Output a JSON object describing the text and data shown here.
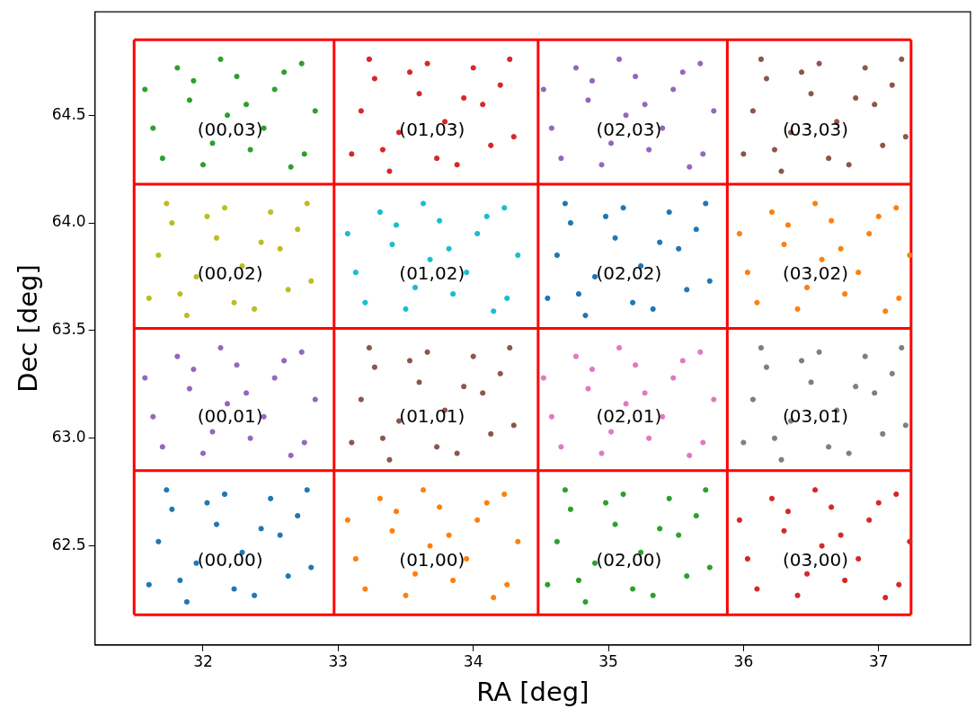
{
  "chart_data": {
    "type": "scatter",
    "xlabel": "RA [deg]",
    "ylabel": "Dec [deg]",
    "xlim": [
      31.2,
      37.68
    ],
    "ylim": [
      62.04,
      64.98
    ],
    "xticks": [
      32,
      33,
      34,
      35,
      36,
      37
    ],
    "yticks": [
      {
        "value": 62.5,
        "label": "62.5"
      },
      {
        "value": 63.0,
        "label": "63.0"
      },
      {
        "value": 63.5,
        "label": "63.5"
      },
      {
        "value": 64.0,
        "label": "64.0"
      },
      {
        "value": 64.5,
        "label": "64.5"
      }
    ],
    "grid": false,
    "legend": false,
    "marker": "circle",
    "annotations": [
      "(00,00)",
      "(01,00)",
      "(02,00)",
      "(03,00)",
      "(00,01)",
      "(01,01)",
      "(02,01)",
      "(03,01)",
      "(00,02)",
      "(01,02)",
      "(02,02)",
      "(03,02)",
      "(00,03)",
      "(01,03)",
      "(02,03)",
      "(03,03)"
    ],
    "series": [
      {
        "color": "#1f77b4",
        "x": [
          31.6,
          31.77,
          31.95,
          32.16,
          32.38,
          32.57,
          32.8,
          31.67,
          31.88,
          32.1,
          32.29,
          32.5,
          32.7,
          31.83,
          32.03,
          32.23,
          32.43,
          32.63,
          32.77,
          31.73
        ],
        "values": [
          62.32,
          62.67,
          62.42,
          62.74,
          62.27,
          62.55,
          62.4,
          62.52,
          62.24,
          62.6,
          62.47,
          62.72,
          62.64,
          62.34,
          62.7,
          62.3,
          62.58,
          62.36,
          62.76,
          62.76
        ]
      },
      {
        "color": "#ff7f0e",
        "x": [
          33.07,
          33.2,
          33.4,
          33.57,
          33.75,
          33.95,
          34.15,
          34.33,
          33.13,
          33.31,
          33.5,
          33.68,
          33.85,
          34.03,
          34.23,
          33.43,
          33.63,
          33.82,
          34.1,
          34.25
        ],
        "values": [
          62.62,
          62.3,
          62.57,
          62.37,
          62.68,
          62.44,
          62.26,
          62.52,
          62.44,
          62.72,
          62.27,
          62.5,
          62.34,
          62.62,
          62.74,
          62.66,
          62.76,
          62.55,
          62.7,
          62.32
        ]
      },
      {
        "color": "#2ca02c",
        "x": [
          34.55,
          34.72,
          34.9,
          35.11,
          35.33,
          35.52,
          35.75,
          34.62,
          34.83,
          35.05,
          35.24,
          35.45,
          35.65,
          34.78,
          34.98,
          35.18,
          35.38,
          35.58,
          35.72,
          34.68
        ],
        "values": [
          62.32,
          62.67,
          62.42,
          62.74,
          62.27,
          62.55,
          62.4,
          62.52,
          62.24,
          62.6,
          62.47,
          62.72,
          62.64,
          62.34,
          62.7,
          62.3,
          62.58,
          62.36,
          62.76,
          62.76
        ]
      },
      {
        "color": "#d62728",
        "x": [
          35.97,
          36.1,
          36.3,
          36.47,
          36.65,
          36.85,
          37.05,
          37.23,
          36.03,
          36.21,
          36.4,
          36.58,
          36.75,
          36.93,
          37.13,
          36.33,
          36.53,
          36.72,
          37.0,
          37.15
        ],
        "values": [
          62.62,
          62.3,
          62.57,
          62.37,
          62.68,
          62.44,
          62.26,
          62.52,
          62.44,
          62.72,
          62.27,
          62.5,
          62.34,
          62.62,
          62.74,
          62.66,
          62.76,
          62.55,
          62.7,
          62.32
        ]
      },
      {
        "color": "#9467bd",
        "x": [
          31.57,
          31.7,
          31.9,
          32.07,
          32.25,
          32.45,
          32.65,
          32.83,
          31.63,
          31.81,
          32.0,
          32.18,
          32.35,
          32.53,
          32.73,
          31.93,
          32.13,
          32.32,
          32.6,
          32.75
        ],
        "values": [
          63.28,
          62.96,
          63.23,
          63.03,
          63.34,
          63.1,
          62.92,
          63.18,
          63.1,
          63.38,
          62.93,
          63.16,
          63.0,
          63.28,
          63.4,
          63.32,
          63.42,
          63.21,
          63.36,
          62.98
        ]
      },
      {
        "color": "#8c564b",
        "x": [
          33.1,
          33.27,
          33.45,
          33.66,
          33.88,
          34.07,
          34.3,
          33.17,
          33.38,
          33.6,
          33.79,
          34.0,
          34.2,
          33.33,
          33.53,
          33.73,
          33.93,
          34.13,
          34.27,
          33.23
        ],
        "values": [
          62.98,
          63.33,
          63.08,
          63.4,
          62.93,
          63.21,
          63.06,
          63.18,
          62.9,
          63.26,
          63.13,
          63.38,
          63.3,
          63.0,
          63.36,
          62.96,
          63.24,
          63.02,
          63.42,
          63.42
        ]
      },
      {
        "color": "#e377c2",
        "x": [
          34.52,
          34.65,
          34.85,
          35.02,
          35.2,
          35.4,
          35.6,
          35.78,
          34.58,
          34.76,
          34.95,
          35.13,
          35.3,
          35.48,
          35.68,
          34.88,
          35.08,
          35.27,
          35.55,
          35.7
        ],
        "values": [
          63.28,
          62.96,
          63.23,
          63.03,
          63.34,
          63.1,
          62.92,
          63.18,
          63.1,
          63.38,
          62.93,
          63.16,
          63.0,
          63.28,
          63.4,
          63.32,
          63.42,
          63.21,
          63.36,
          62.98
        ]
      },
      {
        "color": "#7f7f7f",
        "x": [
          36.0,
          36.17,
          36.35,
          36.56,
          36.78,
          36.97,
          37.2,
          36.07,
          36.28,
          36.5,
          36.69,
          36.9,
          37.1,
          36.23,
          36.43,
          36.63,
          36.83,
          37.03,
          37.17,
          36.13
        ],
        "values": [
          62.98,
          63.33,
          63.08,
          63.4,
          62.93,
          63.21,
          63.06,
          63.18,
          62.9,
          63.26,
          63.13,
          63.38,
          63.3,
          63.0,
          63.36,
          62.96,
          63.24,
          63.02,
          63.42,
          63.42
        ]
      },
      {
        "color": "#bcbd22",
        "x": [
          31.6,
          31.77,
          31.95,
          32.16,
          32.38,
          32.57,
          32.8,
          31.67,
          31.88,
          32.1,
          32.29,
          32.5,
          32.7,
          31.83,
          32.03,
          32.23,
          32.43,
          32.63,
          32.77,
          31.73
        ],
        "values": [
          63.65,
          64.0,
          63.75,
          64.07,
          63.6,
          63.88,
          63.73,
          63.85,
          63.57,
          63.93,
          63.8,
          64.05,
          63.97,
          63.67,
          64.03,
          63.63,
          63.91,
          63.69,
          64.09,
          64.09
        ]
      },
      {
        "color": "#17becf",
        "x": [
          33.07,
          33.2,
          33.4,
          33.57,
          33.75,
          33.95,
          34.15,
          34.33,
          33.13,
          33.31,
          33.5,
          33.68,
          33.85,
          34.03,
          34.23,
          33.43,
          33.63,
          33.82,
          34.1,
          34.25
        ],
        "values": [
          63.95,
          63.63,
          63.9,
          63.7,
          64.01,
          63.77,
          63.59,
          63.85,
          63.77,
          64.05,
          63.6,
          63.83,
          63.67,
          63.95,
          64.07,
          63.99,
          64.09,
          63.88,
          64.03,
          63.65
        ]
      },
      {
        "color": "#1f77b4",
        "x": [
          34.55,
          34.72,
          34.9,
          35.11,
          35.33,
          35.52,
          35.75,
          34.62,
          34.83,
          35.05,
          35.24,
          35.45,
          35.65,
          34.78,
          34.98,
          35.18,
          35.38,
          35.58,
          35.72,
          34.68
        ],
        "values": [
          63.65,
          64.0,
          63.75,
          64.07,
          63.6,
          63.88,
          63.73,
          63.85,
          63.57,
          63.93,
          63.8,
          64.05,
          63.97,
          63.67,
          64.03,
          63.63,
          63.91,
          63.69,
          64.09,
          64.09
        ]
      },
      {
        "color": "#ff7f0e",
        "x": [
          35.97,
          36.1,
          36.3,
          36.47,
          36.65,
          36.85,
          37.05,
          37.23,
          36.03,
          36.21,
          36.4,
          36.58,
          36.75,
          36.93,
          37.13,
          36.33,
          36.53,
          36.72,
          37.0,
          37.15
        ],
        "values": [
          63.95,
          63.63,
          63.9,
          63.7,
          64.01,
          63.77,
          63.59,
          63.85,
          63.77,
          64.05,
          63.6,
          63.83,
          63.67,
          63.95,
          64.07,
          63.99,
          64.09,
          63.88,
          64.03,
          63.65
        ]
      },
      {
        "color": "#2ca02c",
        "x": [
          31.57,
          31.7,
          31.9,
          32.07,
          32.25,
          32.45,
          32.65,
          32.83,
          31.63,
          31.81,
          32.0,
          32.18,
          32.35,
          32.53,
          32.73,
          31.93,
          32.13,
          32.32,
          32.6,
          32.75
        ],
        "values": [
          64.62,
          64.3,
          64.57,
          64.37,
          64.68,
          64.44,
          64.26,
          64.52,
          64.44,
          64.72,
          64.27,
          64.5,
          64.34,
          64.62,
          64.74,
          64.66,
          64.76,
          64.55,
          64.7,
          64.32
        ]
      },
      {
        "color": "#d62728",
        "x": [
          33.1,
          33.27,
          33.45,
          33.66,
          33.88,
          34.07,
          34.3,
          33.17,
          33.38,
          33.6,
          33.79,
          34.0,
          34.2,
          33.33,
          33.53,
          33.73,
          33.93,
          34.13,
          34.27,
          33.23
        ],
        "values": [
          64.32,
          64.67,
          64.42,
          64.74,
          64.27,
          64.55,
          64.4,
          64.52,
          64.24,
          64.6,
          64.47,
          64.72,
          64.64,
          64.34,
          64.7,
          64.3,
          64.58,
          64.36,
          64.76,
          64.76
        ]
      },
      {
        "color": "#9467bd",
        "x": [
          34.52,
          34.65,
          34.85,
          35.02,
          35.2,
          35.4,
          35.6,
          35.78,
          34.58,
          34.76,
          34.95,
          35.13,
          35.3,
          35.48,
          35.68,
          34.88,
          35.08,
          35.27,
          35.55,
          35.7
        ],
        "values": [
          64.62,
          64.3,
          64.57,
          64.37,
          64.68,
          64.44,
          64.26,
          64.52,
          64.44,
          64.72,
          64.27,
          64.5,
          64.34,
          64.62,
          64.74,
          64.66,
          64.76,
          64.55,
          64.7,
          64.32
        ]
      },
      {
        "color": "#8c564b",
        "x": [
          36.0,
          36.17,
          36.35,
          36.56,
          36.78,
          36.97,
          37.2,
          36.07,
          36.28,
          36.5,
          36.69,
          36.9,
          37.1,
          36.23,
          36.43,
          36.63,
          36.83,
          37.03,
          37.17,
          36.13
        ],
        "values": [
          64.32,
          64.67,
          64.42,
          64.74,
          64.27,
          64.55,
          64.4,
          64.52,
          64.24,
          64.6,
          64.47,
          64.72,
          64.64,
          64.34,
          64.7,
          64.3,
          64.58,
          64.36,
          64.76,
          64.76
        ]
      },
      {
        "type": "line",
        "color": "#ff0000",
        "marker": "none",
        "x": [
          31.49,
          31.49
        ],
        "values": [
          62.18,
          64.85
        ]
      },
      {
        "type": "line",
        "color": "#ff0000",
        "marker": "none",
        "x": [
          32.97,
          32.97
        ],
        "values": [
          62.18,
          64.85
        ]
      },
      {
        "type": "line",
        "color": "#ff0000",
        "marker": "none",
        "x": [
          34.48,
          34.48
        ],
        "values": [
          62.18,
          64.85
        ]
      },
      {
        "type": "line",
        "color": "#ff0000",
        "marker": "none",
        "x": [
          35.88,
          35.88
        ],
        "values": [
          62.18,
          64.85
        ]
      },
      {
        "type": "line",
        "color": "#ff0000",
        "marker": "none",
        "x": [
          37.24,
          37.24
        ],
        "values": [
          62.18,
          64.85
        ]
      },
      {
        "type": "line",
        "color": "#ff0000",
        "marker": "none",
        "x": [
          31.49,
          37.24
        ],
        "values": [
          62.18,
          62.18
        ]
      },
      {
        "type": "line",
        "color": "#ff0000",
        "marker": "none",
        "x": [
          31.49,
          37.24
        ],
        "values": [
          62.85,
          62.85
        ]
      },
      {
        "type": "line",
        "color": "#ff0000",
        "marker": "none",
        "x": [
          31.49,
          37.24
        ],
        "values": [
          63.51,
          63.51
        ]
      },
      {
        "type": "line",
        "color": "#ff0000",
        "marker": "none",
        "x": [
          31.49,
          37.24
        ],
        "values": [
          64.18,
          64.18
        ]
      },
      {
        "type": "line",
        "color": "#ff0000",
        "marker": "none",
        "x": [
          31.49,
          37.24
        ],
        "values": [
          64.85,
          64.85
        ]
      }
    ]
  }
}
